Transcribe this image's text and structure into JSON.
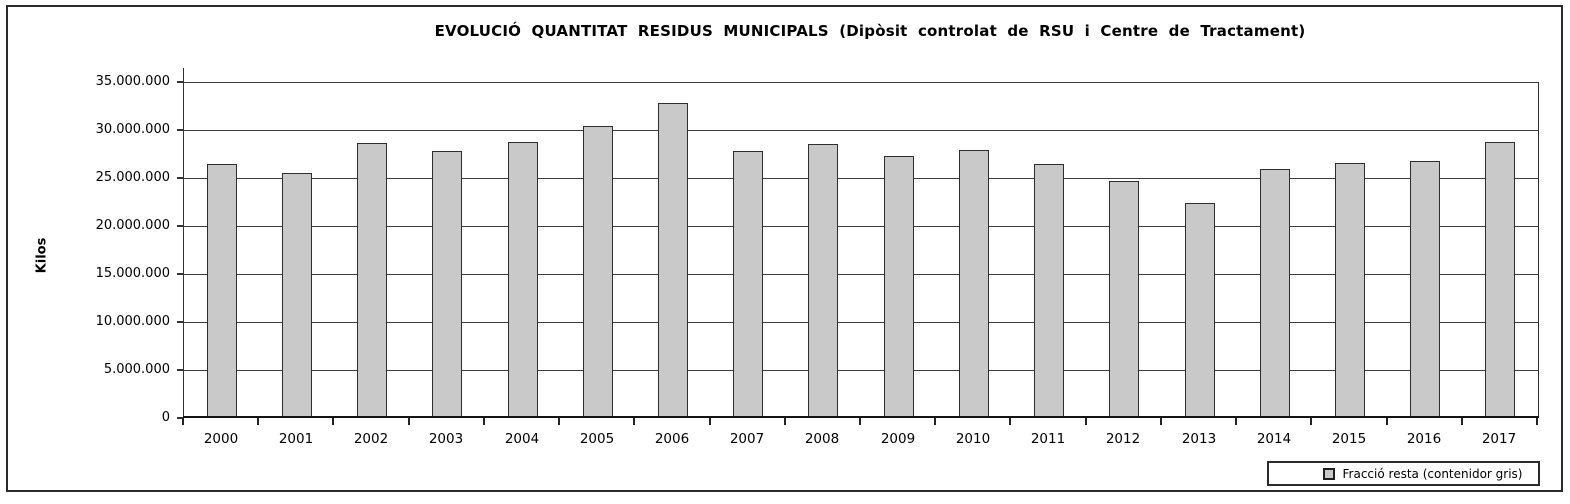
{
  "title": "EVOLUCIÓ QUANTITAT RESIDUS MUNICIPALS (Dipòsit controlat de RSU i Centre de Tractament)",
  "y_axis_title": "Kilos",
  "legend": {
    "label": "Fracció resta (contenidor gris)"
  },
  "colors": {
    "bar_fill": "#c9c9c9",
    "bar_border": "#2e2e2e",
    "gridline": "#3f3f3f"
  },
  "chart_data": {
    "type": "bar",
    "title": "EVOLUCIÓ QUANTITAT RESIDUS MUNICIPALS (Dipòsit controlat de RSU i Centre de Tractament)",
    "xlabel": "",
    "ylabel": "Kilos",
    "ylim": [
      0,
      35000000
    ],
    "ytick_step": 5000000,
    "ytick_labels_top_to_bottom": [
      "35.000.000",
      "30.000.000",
      "25.000.000",
      "20.000.000",
      "15.000.000",
      "10.000.000",
      "5.000.000",
      "0"
    ],
    "grid": true,
    "legend_position": "bottom-right",
    "categories": [
      "2000",
      "2001",
      "2002",
      "2003",
      "2004",
      "2005",
      "2006",
      "2007",
      "2008",
      "2009",
      "2010",
      "2011",
      "2012",
      "2013",
      "2014",
      "2015",
      "2016",
      "2017"
    ],
    "series": [
      {
        "name": "Fracció resta (contenidor gris)",
        "values": [
          26500000,
          25500000,
          28600000,
          27800000,
          28800000,
          30400000,
          32800000,
          27800000,
          28500000,
          27300000,
          27900000,
          26500000,
          24700000,
          22400000,
          25900000,
          26600000,
          26800000,
          28800000
        ]
      }
    ]
  }
}
